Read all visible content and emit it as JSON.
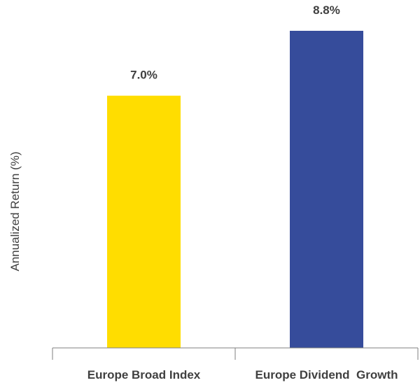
{
  "chart_data": {
    "type": "bar",
    "categories": [
      "Europe Broad Index",
      "Europe Dividend  Growth"
    ],
    "values": [
      7.0,
      8.8
    ],
    "value_labels": [
      "7.0%",
      "8.8%"
    ],
    "ylabel": "Annualized Return (%)",
    "xlabel": "",
    "ylim": [
      0,
      8.8
    ],
    "grid": false,
    "legend": "none",
    "colors": [
      "#FFDD00",
      "#364C9B"
    ],
    "axis_color": "#7F7F7F",
    "text_color": "#404040"
  }
}
